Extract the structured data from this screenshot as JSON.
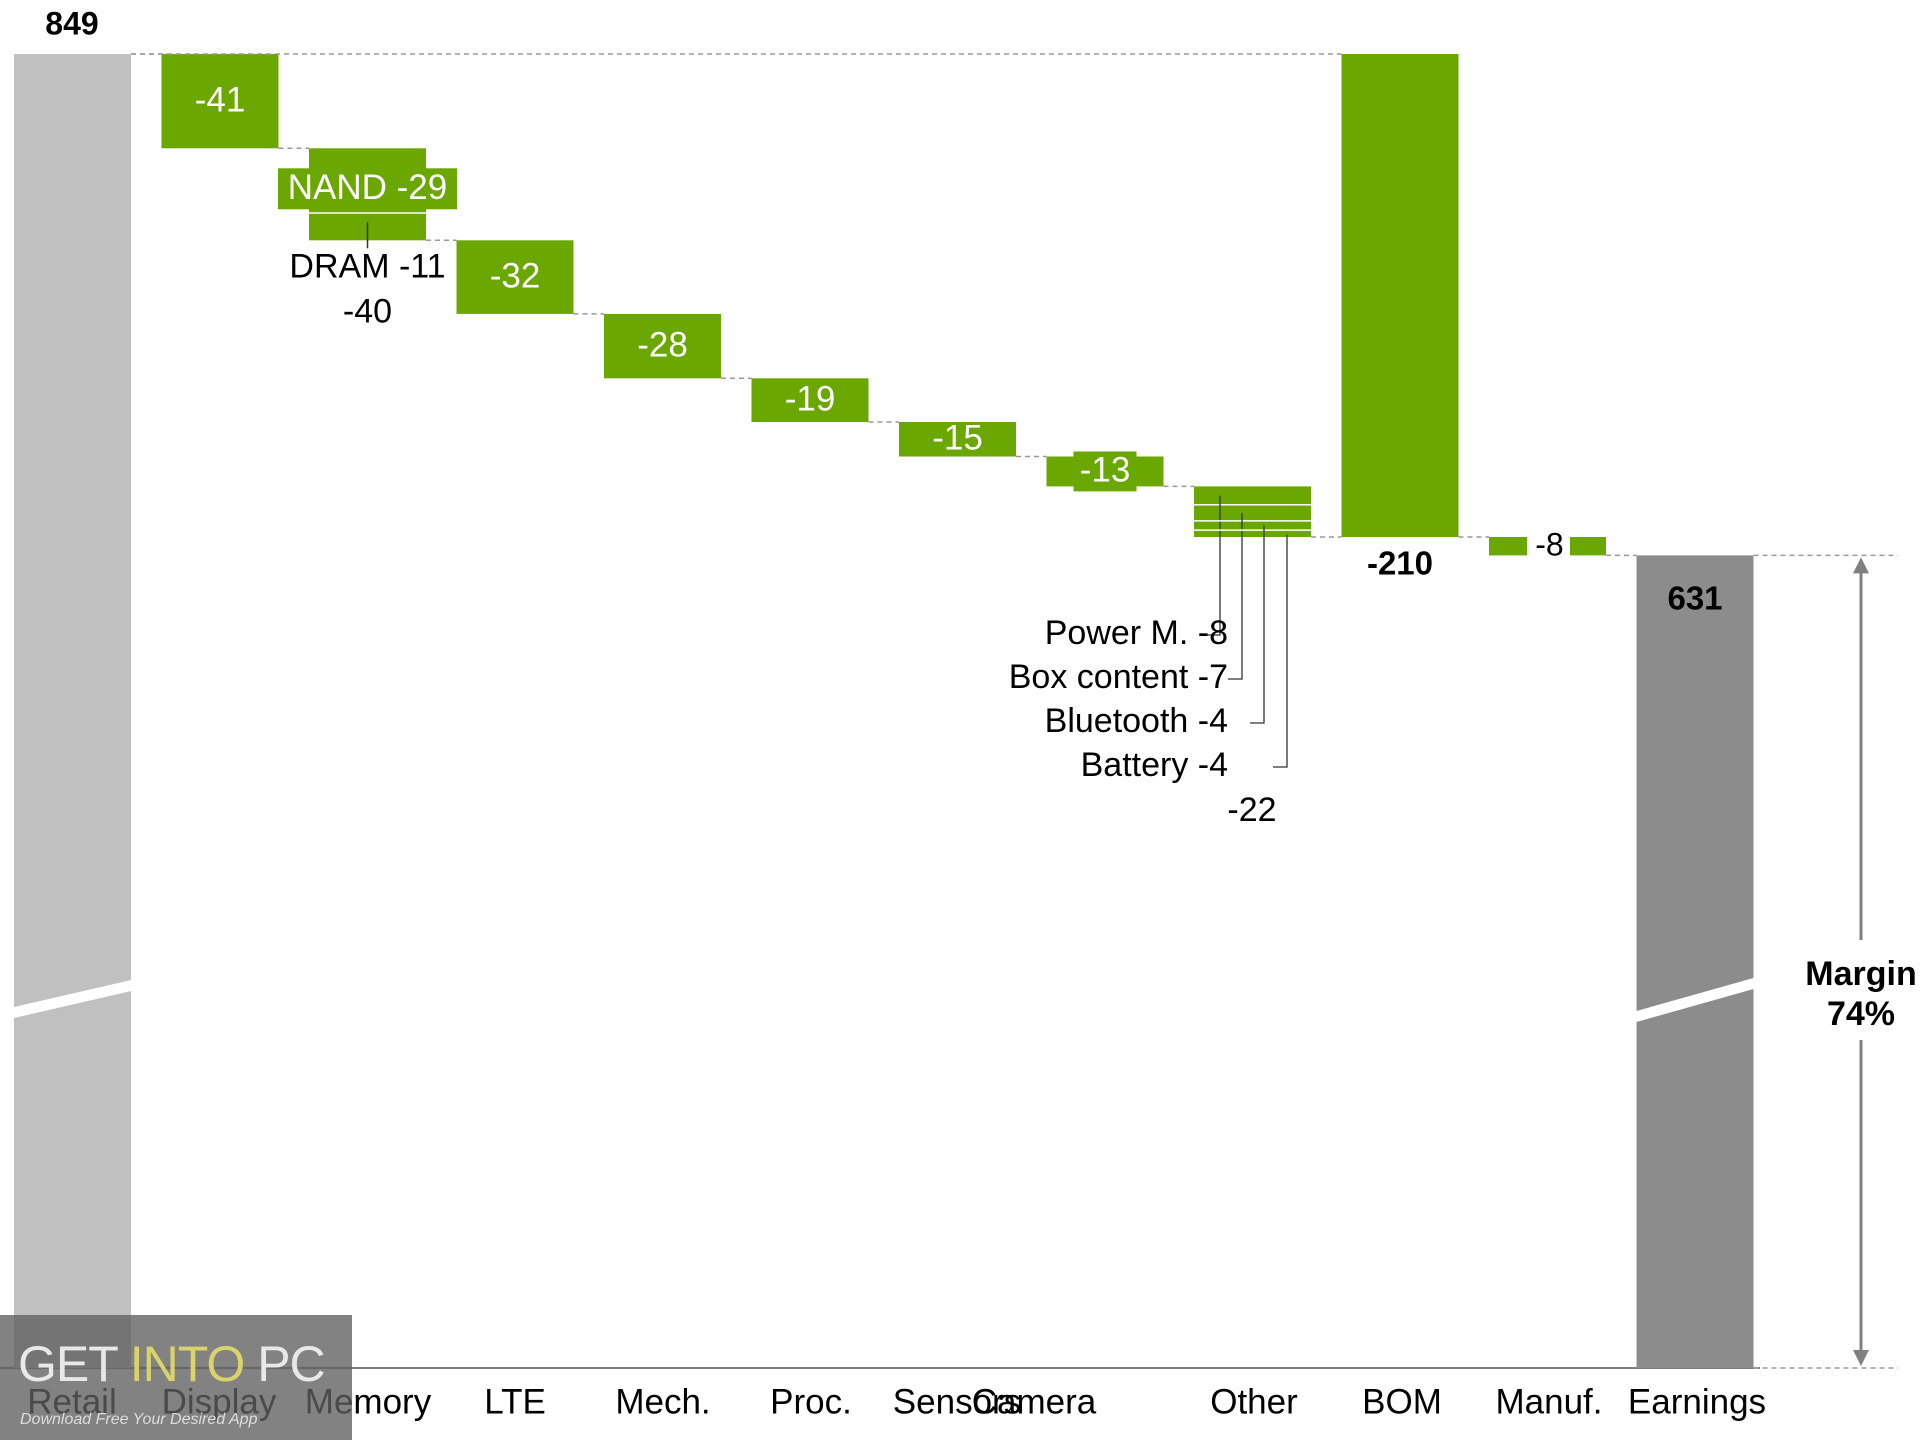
{
  "chart_data": {
    "type": "waterfall",
    "categories": [
      "Retail",
      "Display",
      "Memory",
      "LTE",
      "Mech.",
      "Proc.",
      "Sensors",
      "Camera",
      "Other",
      "BOM",
      "Manuf.",
      "Earnings"
    ],
    "start": {
      "category": "Retail",
      "value": 849,
      "label": "849"
    },
    "steps": [
      {
        "category": "Display",
        "value": -41,
        "label": "-41"
      },
      {
        "category": "Memory",
        "value": -40,
        "label": "-40",
        "parts": [
          {
            "name": "NAND",
            "value": -29,
            "label": "NAND -29"
          },
          {
            "name": "DRAM",
            "value": -11,
            "label": "DRAM -11"
          }
        ]
      },
      {
        "category": "LTE",
        "value": -32,
        "label": "-32"
      },
      {
        "category": "Mech.",
        "value": -28,
        "label": "-28"
      },
      {
        "category": "Proc.",
        "value": -19,
        "label": "-19"
      },
      {
        "category": "Sensors",
        "value": -15,
        "label": "-15"
      },
      {
        "category": "Camera",
        "value": -13,
        "label": "-13"
      },
      {
        "category": "Other",
        "value": -22,
        "label": "-22",
        "parts": [
          {
            "name": "Power M.",
            "value": -8,
            "label": "Power M. -8"
          },
          {
            "name": "Box content",
            "value": -7,
            "label": "Box content -7"
          },
          {
            "name": "Bluetooth",
            "value": -4,
            "label": "Bluetooth -4"
          },
          {
            "name": "Battery",
            "value": -4,
            "label": "Battery -4"
          }
        ]
      }
    ],
    "subtotal": {
      "category": "BOM",
      "value": -210,
      "label": "-210"
    },
    "manuf": {
      "category": "Manuf.",
      "value": -8,
      "label": "-8"
    },
    "end": {
      "category": "Earnings",
      "value": 631,
      "label": "631"
    },
    "margin": {
      "line1": "Margin",
      "line2": "74%"
    },
    "axis_break": true,
    "colors": {
      "step": "#6aa700",
      "start": "#c0c0c0",
      "end": "#8c8c8c",
      "connector": "#999999",
      "text": "#000000"
    }
  },
  "watermark": {
    "part1": "GET ",
    "part2": "INTO",
    "part3": " PC",
    "subtitle": "Download Free Your Desired App"
  }
}
